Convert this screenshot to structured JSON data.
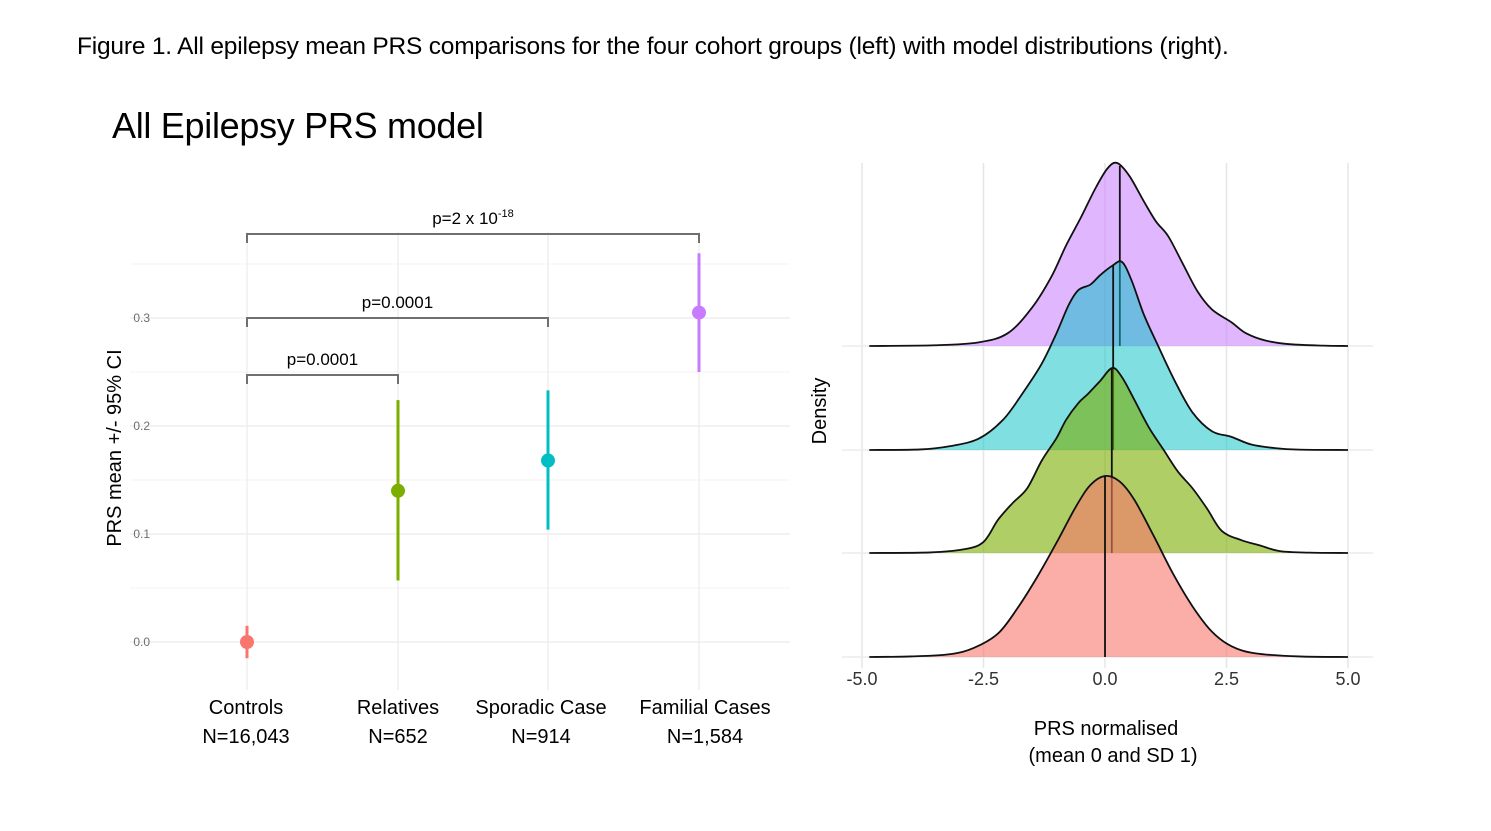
{
  "caption": "Figure 1. All epilepsy mean PRS comparisons for the four cohort groups (left) with model distributions (right).",
  "chart_data": [
    {
      "type": "scatter",
      "subtype": "pointrange",
      "title": "All Epilepsy PRS model",
      "xlabel": "",
      "ylabel": "PRS mean +/- 95% CI",
      "ylim": [
        -0.03,
        0.36
      ],
      "yticks": [
        0.0,
        0.1,
        0.2,
        0.3
      ],
      "ytick_labels": [
        "0.0",
        "0.1",
        "0.2",
        "0.3"
      ],
      "minor_yticks": [
        0.05,
        0.15,
        0.25,
        0.35
      ],
      "grid": true,
      "categories": [
        "Controls",
        "Relatives",
        "Sporadic Case",
        "Familial Cases"
      ],
      "category_n": [
        "N=16,043",
        "N=652",
        "N=914",
        "N=1,584"
      ],
      "series": [
        {
          "name": "Controls",
          "mean": 0.0,
          "lower": -0.015,
          "upper": 0.015,
          "color": "#F8766D"
        },
        {
          "name": "Relatives",
          "mean": 0.14,
          "lower": 0.057,
          "upper": 0.224,
          "color": "#7CAE00"
        },
        {
          "name": "Sporadic Case",
          "mean": 0.168,
          "lower": 0.104,
          "upper": 0.233,
          "color": "#00BFC4"
        },
        {
          "name": "Familial Cases",
          "mean": 0.305,
          "lower": 0.25,
          "upper": 0.36,
          "color": "#C77CFF"
        }
      ],
      "comparisons": [
        {
          "from": "Controls",
          "to": "Relatives",
          "y": 0.25,
          "label": "p=0.0001"
        },
        {
          "from": "Controls",
          "to": "Sporadic Case",
          "y": 0.3,
          "label": "p=0.0001"
        },
        {
          "from": "Controls",
          "to": "Familial Cases",
          "y": 0.377,
          "label_base": "p=2 x 10",
          "label_exp": "-18"
        }
      ]
    },
    {
      "type": "area",
      "subtype": "ridgeline",
      "title": "",
      "xlabel": "PRS normalised",
      "xlabel_line2": "(mean 0 and SD 1)",
      "ylabel": "Density",
      "xlim": [
        -5.0,
        5.0
      ],
      "xticks": [
        -5.0,
        -2.5,
        0.0,
        2.5,
        5.0
      ],
      "xtick_labels": [
        "-5.0",
        "-2.5",
        "0.0",
        "2.5",
        "5.0"
      ],
      "grid": true,
      "series": [
        {
          "name": "Controls",
          "mean": 0.0,
          "sd": 1.0,
          "peak_x": 0.05,
          "color": "#F8766D",
          "fill_alpha": 0.6,
          "shape": [
            [
              -4.85,
              0
            ],
            [
              -4,
              0.003
            ],
            [
              -3.2,
              0.015
            ],
            [
              -2.7,
              0.05
            ],
            [
              -2.2,
              0.13
            ],
            [
              -1.8,
              0.27
            ],
            [
              -1.4,
              0.44
            ],
            [
              -1.0,
              0.63
            ],
            [
              -0.6,
              0.83
            ],
            [
              -0.3,
              0.95
            ],
            [
              0.0,
              1.0
            ],
            [
              0.3,
              0.97
            ],
            [
              0.6,
              0.87
            ],
            [
              1.0,
              0.67
            ],
            [
              1.4,
              0.46
            ],
            [
              1.8,
              0.28
            ],
            [
              2.2,
              0.14
            ],
            [
              2.6,
              0.06
            ],
            [
              3.1,
              0.02
            ],
            [
              4.0,
              0.003
            ],
            [
              5.0,
              0
            ]
          ]
        },
        {
          "name": "Relatives",
          "mean": 0.14,
          "peak_x": 0.15,
          "color": "#7CAE00",
          "fill_alpha": 0.6,
          "shape": [
            [
              -4.85,
              0
            ],
            [
              -3.6,
              0.003
            ],
            [
              -2.9,
              0.02
            ],
            [
              -2.5,
              0.06
            ],
            [
              -2.2,
              0.18
            ],
            [
              -1.9,
              0.27
            ],
            [
              -1.6,
              0.35
            ],
            [
              -1.3,
              0.5
            ],
            [
              -1.0,
              0.62
            ],
            [
              -0.8,
              0.72
            ],
            [
              -0.55,
              0.81
            ],
            [
              -0.35,
              0.86
            ],
            [
              -0.1,
              0.93
            ],
            [
              0.15,
              1.0
            ],
            [
              0.35,
              0.95
            ],
            [
              0.6,
              0.83
            ],
            [
              0.9,
              0.68
            ],
            [
              1.2,
              0.56
            ],
            [
              1.5,
              0.44
            ],
            [
              1.8,
              0.35
            ],
            [
              2.1,
              0.24
            ],
            [
              2.4,
              0.12
            ],
            [
              2.8,
              0.07
            ],
            [
              3.2,
              0.04
            ],
            [
              3.6,
              0.01
            ],
            [
              4.2,
              0.002
            ],
            [
              5.0,
              0
            ]
          ]
        },
        {
          "name": "Sporadic Case",
          "mean": 0.168,
          "peak_x": 0.2,
          "color": "#00BFC4",
          "fill_alpha": 0.5,
          "shape": [
            [
              -4.85,
              0
            ],
            [
              -3.8,
              0.003
            ],
            [
              -3.2,
              0.02
            ],
            [
              -2.6,
              0.06
            ],
            [
              -2.1,
              0.16
            ],
            [
              -1.7,
              0.3
            ],
            [
              -1.3,
              0.46
            ],
            [
              -1.0,
              0.62
            ],
            [
              -0.75,
              0.77
            ],
            [
              -0.55,
              0.85
            ],
            [
              -0.3,
              0.88
            ],
            [
              -0.1,
              0.93
            ],
            [
              0.15,
              0.98
            ],
            [
              0.35,
              1.0
            ],
            [
              0.55,
              0.9
            ],
            [
              0.8,
              0.72
            ],
            [
              1.1,
              0.55
            ],
            [
              1.45,
              0.36
            ],
            [
              1.8,
              0.2
            ],
            [
              2.2,
              0.1
            ],
            [
              2.6,
              0.07
            ],
            [
              3.0,
              0.03
            ],
            [
              3.5,
              0.01
            ],
            [
              4.0,
              0.002
            ],
            [
              5.0,
              0
            ]
          ]
        },
        {
          "name": "Familial Cases",
          "mean": 0.305,
          "peak_x": 0.25,
          "color": "#C77CFF",
          "fill_alpha": 0.55,
          "shape": [
            [
              -4.85,
              0
            ],
            [
              -3.5,
              0.004
            ],
            [
              -2.6,
              0.02
            ],
            [
              -2.0,
              0.07
            ],
            [
              -1.5,
              0.21
            ],
            [
              -1.1,
              0.38
            ],
            [
              -0.8,
              0.55
            ],
            [
              -0.5,
              0.7
            ],
            [
              -0.2,
              0.86
            ],
            [
              0.05,
              0.97
            ],
            [
              0.25,
              1.0
            ],
            [
              0.5,
              0.93
            ],
            [
              0.8,
              0.79
            ],
            [
              1.05,
              0.68
            ],
            [
              1.3,
              0.6
            ],
            [
              1.6,
              0.45
            ],
            [
              1.9,
              0.3
            ],
            [
              2.2,
              0.2
            ],
            [
              2.6,
              0.13
            ],
            [
              2.9,
              0.07
            ],
            [
              3.3,
              0.03
            ],
            [
              3.8,
              0.01
            ],
            [
              4.5,
              0.002
            ],
            [
              5.0,
              0
            ]
          ]
        }
      ]
    }
  ]
}
